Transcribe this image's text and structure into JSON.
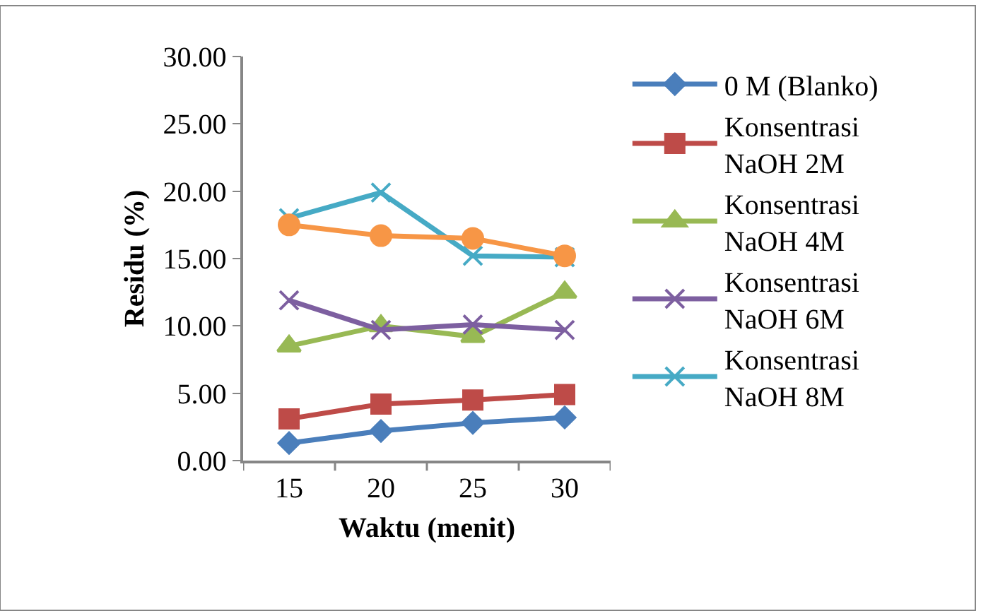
{
  "chart_data": {
    "type": "line",
    "xlabel": "Waktu (menit)",
    "ylabel": "Residu (%)",
    "categories": [
      "15",
      "20",
      "25",
      "30"
    ],
    "ylim": [
      0,
      30
    ],
    "yticks": [
      {
        "value": 0,
        "label": "0.00"
      },
      {
        "value": 5,
        "label": "5.00"
      },
      {
        "value": 10,
        "label": "10.00"
      },
      {
        "value": 15,
        "label": "15.00"
      },
      {
        "value": 20,
        "label": "20.00"
      },
      {
        "value": 25,
        "label": "25.00"
      },
      {
        "value": 30,
        "label": "30.00"
      }
    ],
    "grid": false,
    "legend": "right",
    "line_style": "solid",
    "series": [
      {
        "name": "0 M (Blanko)",
        "color": "#4a7ebb",
        "marker": "diamond",
        "values": [
          1.3,
          2.2,
          2.8,
          3.2
        ]
      },
      {
        "name": "Konsentrasi NaOH 2M",
        "color": "#be4b48",
        "marker": "square",
        "values": [
          3.1,
          4.2,
          4.5,
          4.9
        ]
      },
      {
        "name": "Konsentrasi NaOH 4M",
        "color": "#98b954",
        "marker": "triangle",
        "values": [
          8.5,
          10.0,
          9.2,
          12.5
        ]
      },
      {
        "name": "Konsentrasi NaOH 6M",
        "color": "#7d5fa0",
        "marker": "cross",
        "values": [
          11.9,
          9.7,
          10.1,
          9.7
        ]
      },
      {
        "name": "Konsentrasi NaOH 8M",
        "color": "#46aac5",
        "marker": "cross",
        "values": [
          18.0,
          19.9,
          15.2,
          15.1
        ]
      },
      {
        "color": "#f79646",
        "marker": "circle",
        "values": [
          17.5,
          16.7,
          16.5,
          15.2
        ]
      }
    ]
  }
}
